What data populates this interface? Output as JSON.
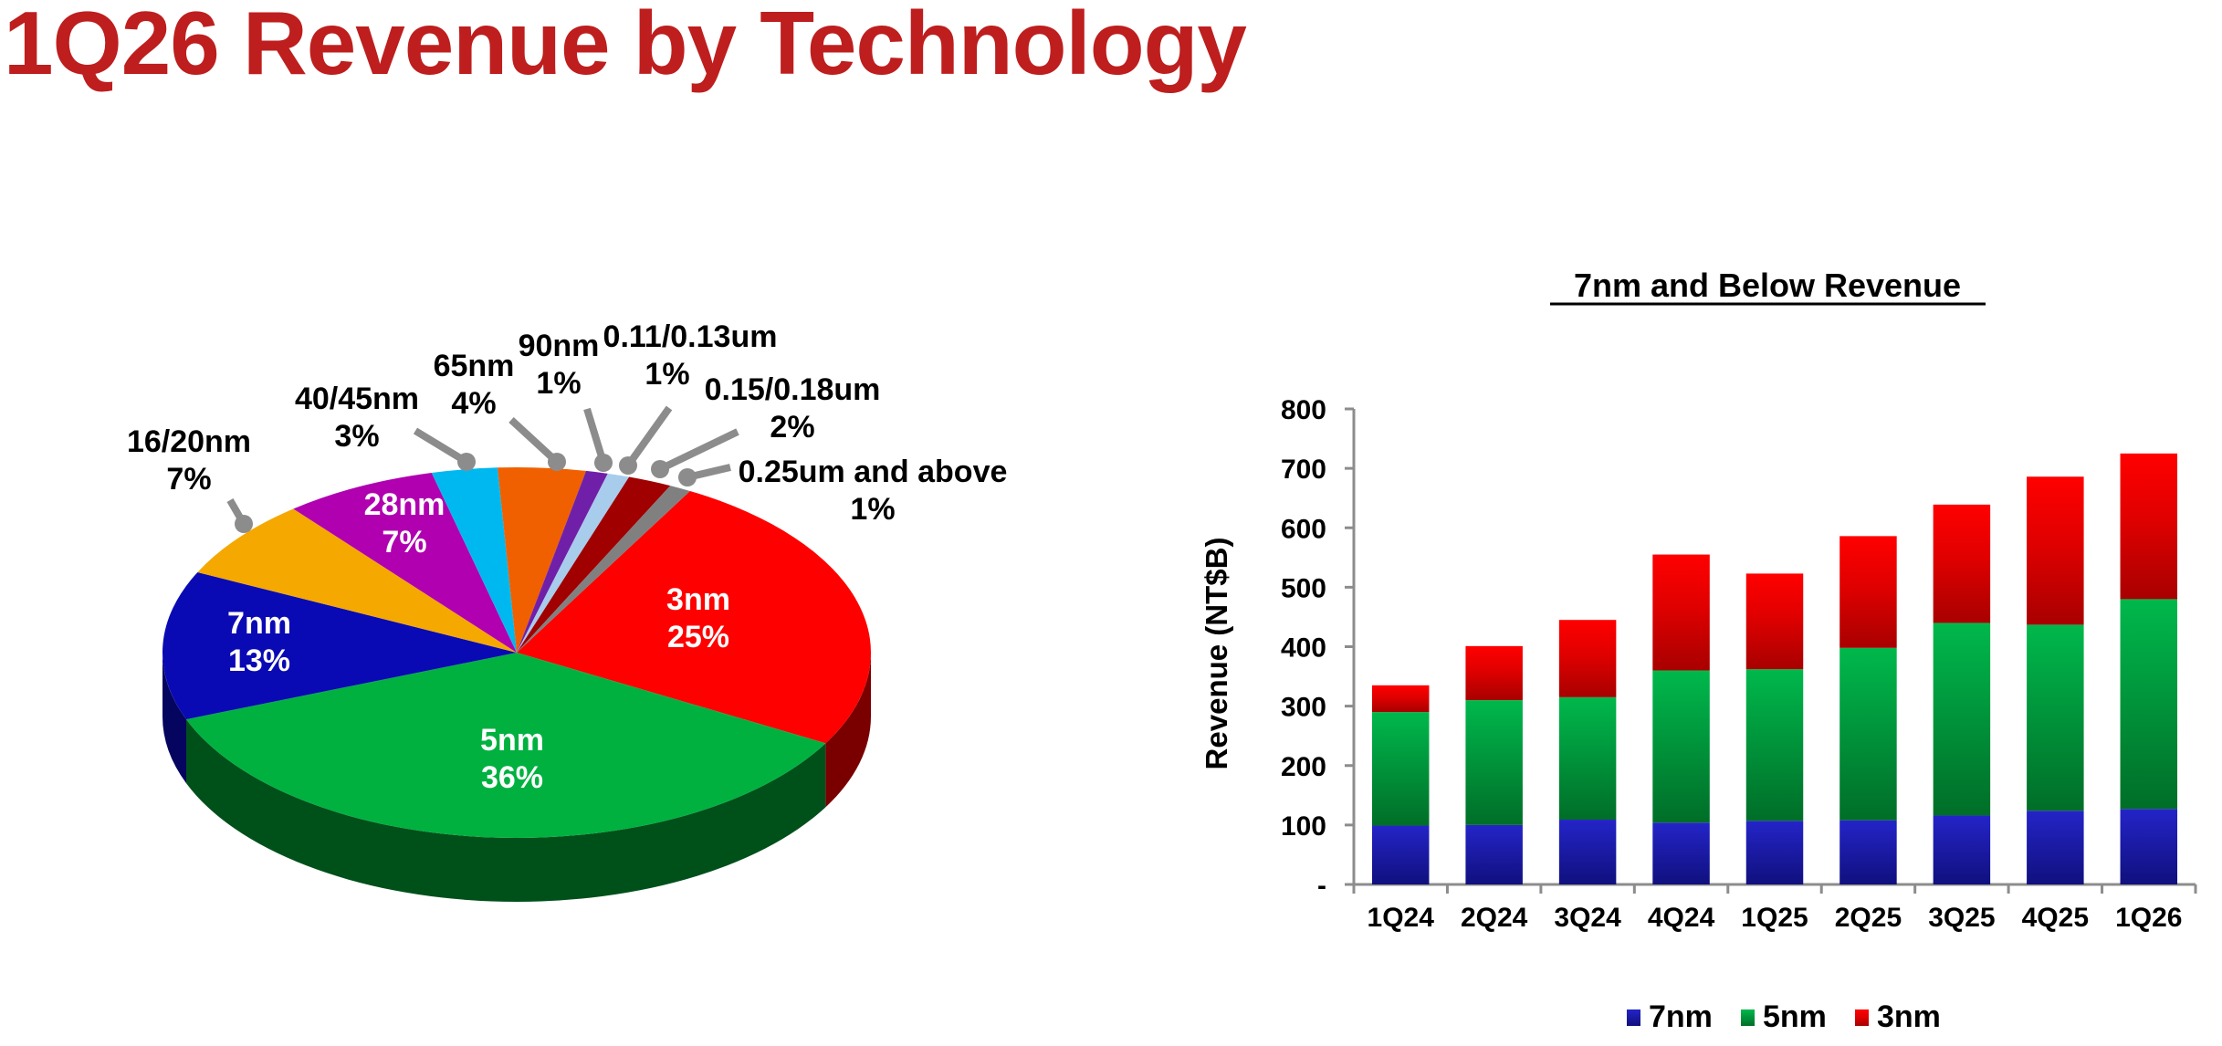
{
  "page": {
    "title": "1Q26 Revenue by Technology",
    "title_color": "#BE1E1E"
  },
  "chart_data": [
    {
      "type": "pie",
      "variant": "3d",
      "title": "1Q26 Revenue by Technology",
      "unit": "%",
      "start_angle_deg": -60.7,
      "slices": [
        {
          "label": "3nm",
          "value": 25,
          "display": "25%",
          "color": "#FF0000",
          "side": "#7A0000",
          "label_inside": true
        },
        {
          "label": "5nm",
          "value": 36,
          "display": "36%",
          "color": "#00B140",
          "side": "#00501A",
          "label_inside": true
        },
        {
          "label": "7nm",
          "value": 13,
          "display": "13%",
          "color": "#0A0AB4",
          "side": "#050560",
          "label_inside": true
        },
        {
          "label": "16/20nm",
          "value": 7,
          "display": "7%",
          "color": "#F5A800",
          "side": "#8A5E00",
          "label_inside": false
        },
        {
          "label": "28nm",
          "value": 7,
          "display": "7%",
          "color": "#B000B0",
          "side": "#5A005A",
          "label_inside": true
        },
        {
          "label": "40/45nm",
          "value": 3,
          "display": "3%",
          "color": "#00B8F0",
          "side": "#006080",
          "label_inside": false
        },
        {
          "label": "65nm",
          "value": 4,
          "display": "4%",
          "color": "#F06000",
          "side": "#7A3000",
          "label_inside": false
        },
        {
          "label": "90nm",
          "value": 1,
          "display": "1%",
          "color": "#7020A8",
          "side": "#381050",
          "label_inside": false
        },
        {
          "label": "0.11/0.13um",
          "value": 1,
          "display": "1%",
          "color": "#A8CCEC",
          "side": "#5A7088",
          "label_inside": false
        },
        {
          "label": "0.15/0.18um",
          "value": 2,
          "display": "2%",
          "color": "#A00000",
          "side": "#500000",
          "label_inside": false
        },
        {
          "label": "0.25um and above",
          "value": 1,
          "display": "1%",
          "color": "#808080",
          "side": "#404040",
          "label_inside": false
        }
      ]
    },
    {
      "type": "bar",
      "stacked": true,
      "title": "7nm and Below Revenue",
      "xlabel": "",
      "ylabel": "Revenue (NT$B)",
      "ylim": [
        0,
        800
      ],
      "yticks": [
        0,
        100,
        200,
        300,
        400,
        500,
        600,
        700,
        800
      ],
      "ytick_labels": [
        "-",
        "100",
        "200",
        "300",
        "400",
        "500",
        "600",
        "700",
        "800"
      ],
      "grid": false,
      "legend_position": "bottom",
      "categories": [
        "1Q24",
        "2Q24",
        "3Q24",
        "4Q24",
        "1Q25",
        "2Q25",
        "3Q25",
        "4Q25",
        "1Q26"
      ],
      "series": [
        {
          "name": "7nm",
          "color": "#2020C0",
          "values": [
            99,
            100,
            109,
            104,
            107,
            108,
            116,
            124,
            127
          ]
        },
        {
          "name": "5nm",
          "color": "#00B14A",
          "values": [
            191,
            210,
            206,
            256,
            255,
            290,
            324,
            313,
            353
          ]
        },
        {
          "name": "3nm",
          "color": "#FF0000",
          "values": [
            45,
            91,
            130,
            195,
            161,
            188,
            199,
            249,
            245
          ]
        }
      ],
      "totals": [
        335,
        401,
        445,
        555,
        523,
        586,
        639,
        686,
        725
      ]
    }
  ]
}
